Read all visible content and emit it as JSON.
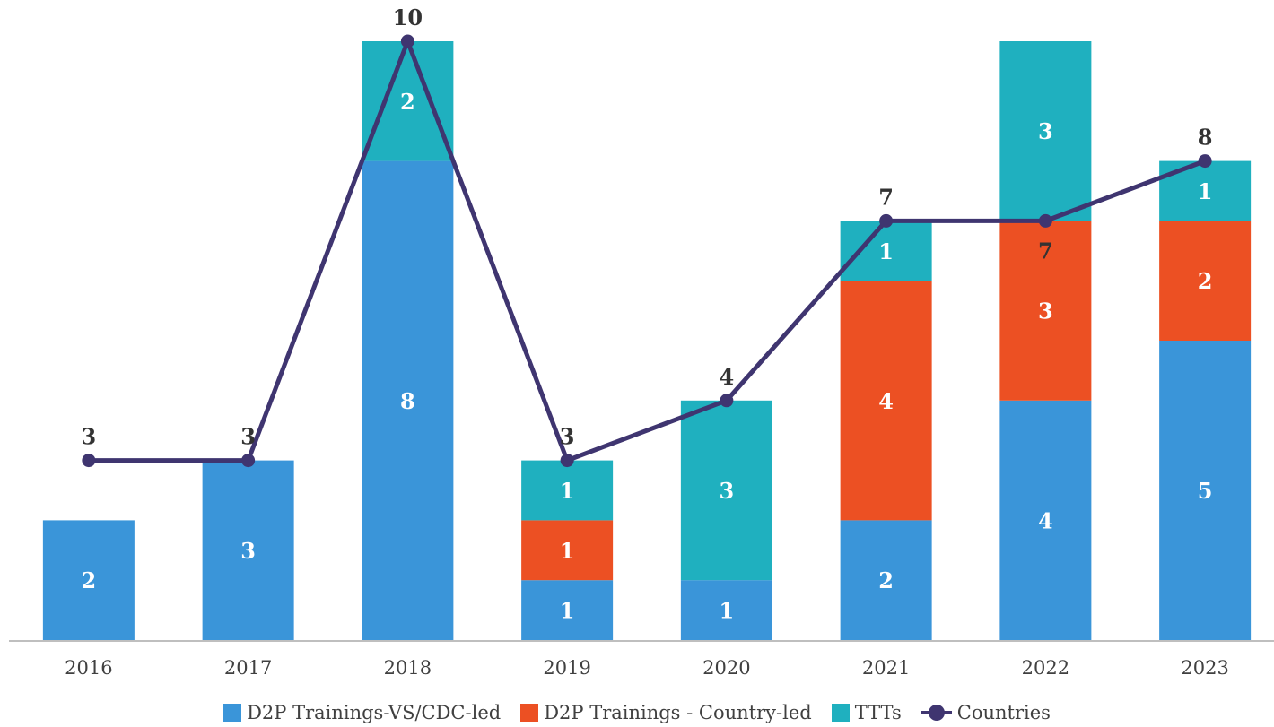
{
  "chart_data": {
    "type": "bar",
    "stacked": true,
    "categories": [
      "2016",
      "2017",
      "2018",
      "2019",
      "2020",
      "2021",
      "2022",
      "2023"
    ],
    "series": [
      {
        "name": "D2P Trainings-VS/CDC-led",
        "color": "#3a95d9",
        "values": [
          2,
          3,
          8,
          1,
          1,
          2,
          4,
          5
        ]
      },
      {
        "name": "D2P Trainings - Country-led",
        "color": "#ec5023",
        "values": [
          0,
          0,
          0,
          1,
          0,
          4,
          3,
          2
        ]
      },
      {
        "name": "TTTs",
        "color": "#1fb0bf",
        "values": [
          0,
          0,
          2,
          1,
          3,
          1,
          3,
          1
        ]
      }
    ],
    "line_series": {
      "name": "Countries",
      "color": "#3f3570",
      "values": [
        3,
        3,
        10,
        3,
        4,
        7,
        7,
        8
      ]
    },
    "ylim": [
      0,
      10
    ],
    "grid": false,
    "legend_position": "bottom"
  }
}
